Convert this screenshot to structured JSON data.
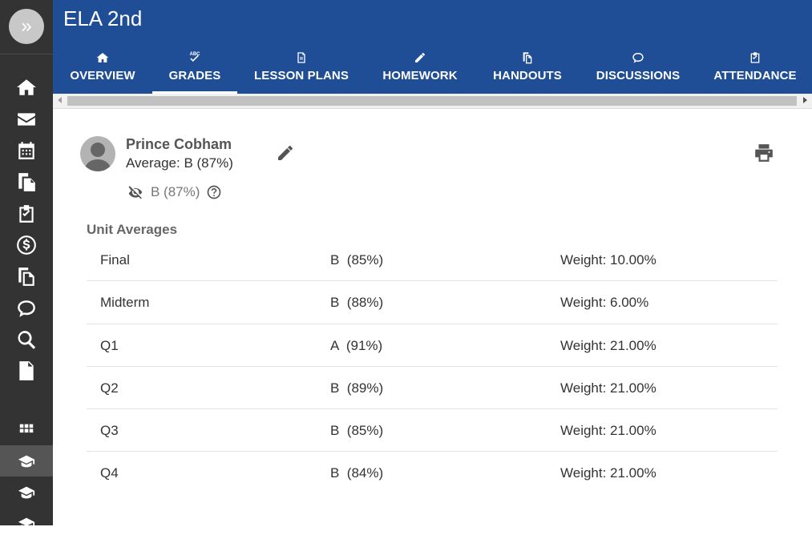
{
  "course": {
    "title": "ELA 2nd"
  },
  "tabs": [
    {
      "label": "OVERVIEW",
      "icon": "home-icon"
    },
    {
      "label": "GRADES",
      "icon": "grades-icon"
    },
    {
      "label": "LESSON PLANS",
      "icon": "document-icon"
    },
    {
      "label": "HOMEWORK",
      "icon": "pencil-icon"
    },
    {
      "label": "HANDOUTS",
      "icon": "copy-icon"
    },
    {
      "label": "DISCUSSIONS",
      "icon": "chat-icon"
    },
    {
      "label": "ATTENDANCE",
      "icon": "clipboard-check-icon"
    }
  ],
  "active_tab": "GRADES",
  "sidebar": {
    "expand": "»",
    "items": [
      "home-icon",
      "mail-icon",
      "calendar-icon",
      "documents-icon",
      "clipboard-check-icon",
      "dollar-icon",
      "copy-icon",
      "chat-icon",
      "search-icon",
      "file-text-icon",
      "grid-icon",
      "graduation-cap-icon",
      "graduation-cap-icon",
      "graduation-cap-icon"
    ]
  },
  "student": {
    "name": "Prince Cobham",
    "average": "Average: B (87%)",
    "hidden_grade": "B (87%)"
  },
  "unit_averages": {
    "title": "Unit Averages",
    "rows": [
      {
        "name": "Final",
        "grade": "B  (85%)",
        "weight": "Weight: 10.00%"
      },
      {
        "name": "Midterm",
        "grade": "B  (88%)",
        "weight": "Weight: 6.00%"
      },
      {
        "name": "Q1",
        "grade": "A  (91%)",
        "weight": "Weight: 21.00%"
      },
      {
        "name": "Q2",
        "grade": "B  (89%)",
        "weight": "Weight: 21.00%"
      },
      {
        "name": "Q3",
        "grade": "B  (85%)",
        "weight": "Weight: 21.00%"
      },
      {
        "name": "Q4",
        "grade": "B  (84%)",
        "weight": "Weight: 21.00%"
      }
    ]
  },
  "colors": {
    "header": "#1f4e96",
    "sidebar": "#333333",
    "sidebar_active": "#555555"
  }
}
